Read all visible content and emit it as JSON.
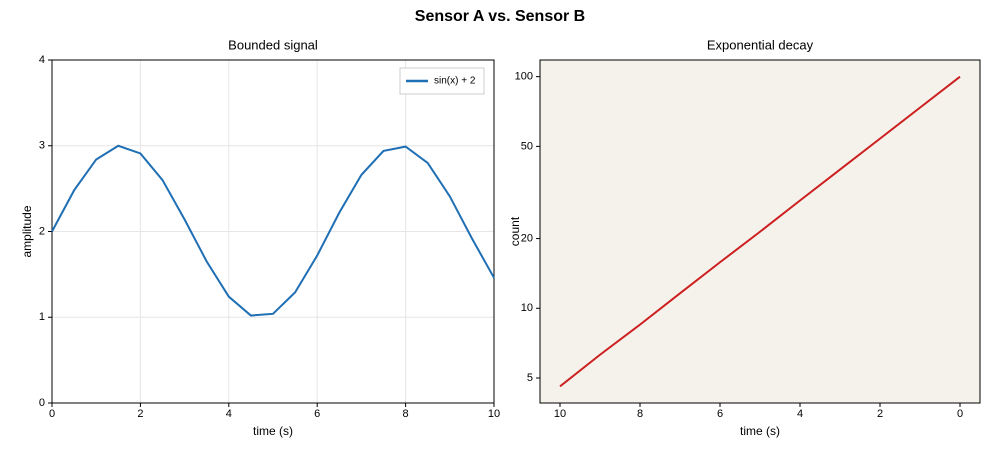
{
  "title": "Sensor A vs. Sensor B",
  "chart_data": [
    {
      "type": "line",
      "title": "Bounded signal",
      "xlabel": "time (s)",
      "ylabel": "amplitude",
      "x": [
        0,
        0.5,
        1,
        1.5,
        2,
        2.5,
        3,
        3.5,
        4,
        4.5,
        5,
        5.5,
        6,
        6.5,
        7,
        7.5,
        8,
        8.5,
        9,
        9.5,
        10
      ],
      "series": [
        {
          "name": "sin(x) + 2",
          "color": "#1f6fb4",
          "values": [
            2,
            2.48,
            2.84,
            3.0,
            2.91,
            2.6,
            2.14,
            1.65,
            1.24,
            1.02,
            1.04,
            1.29,
            1.72,
            2.22,
            2.66,
            2.94,
            2.99,
            2.8,
            2.41,
            1.92,
            1.46
          ]
        }
      ],
      "xlim": [
        0,
        10
      ],
      "xticks": [
        0,
        2,
        4,
        6,
        8,
        10
      ],
      "ylim": [
        0,
        4
      ],
      "yticks": [
        0,
        1,
        2,
        3,
        4
      ],
      "grid": true,
      "legend": "upper right",
      "background": "#ffffff"
    },
    {
      "type": "line",
      "title": "Exponential decay",
      "xlabel": "time (s)",
      "ylabel": "count",
      "x": [
        0,
        1,
        2,
        3,
        4,
        5,
        6,
        7,
        8,
        9,
        10
      ],
      "series": [
        {
          "color": "#cc1f1f",
          "values": [
            100,
            73.5,
            54.0,
            39.7,
            29.2,
            21.4,
            15.8,
            11.6,
            8.5,
            6.3,
            4.6
          ]
        }
      ],
      "xlim": [
        10.5,
        -0.5
      ],
      "xticks": [
        10,
        8,
        6,
        4,
        2,
        0
      ],
      "ylim": [
        3.9,
        118
      ],
      "yticks": [
        5,
        10,
        20,
        50,
        100
      ],
      "ylog": true,
      "grid": false,
      "background": "#f5f2ec"
    }
  ]
}
